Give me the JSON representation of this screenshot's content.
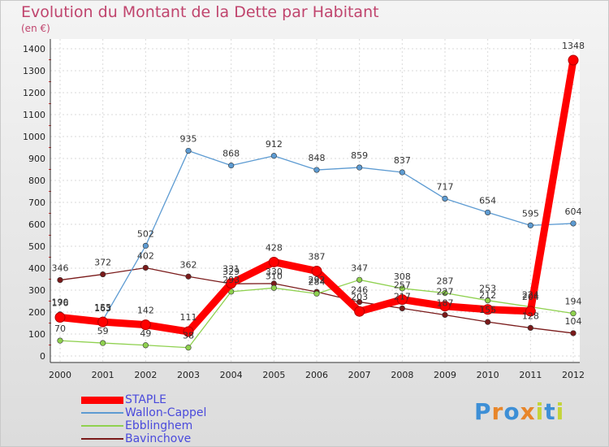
{
  "chart_data": {
    "type": "line",
    "title": "Evolution du Montant de la Dette par Habitant",
    "subtitle": "(en €)",
    "categories": [
      "2000",
      "2001",
      "2002",
      "2003",
      "2004",
      "2005",
      "2006",
      "2007",
      "2008",
      "2009",
      "2010",
      "2011",
      "2012"
    ],
    "ylim": [
      0,
      1400
    ],
    "yticks": [
      0,
      100,
      200,
      300,
      400,
      500,
      600,
      700,
      800,
      900,
      1000,
      1100,
      1200,
      1300,
      1400
    ],
    "grid": true,
    "legend_position": "bottom-left",
    "series": [
      {
        "name": "STAPLE",
        "color": "#ff0000",
        "values": [
          176,
          155,
          142,
          111,
          331,
          428,
          387,
          203,
          257,
          227,
          212,
          204,
          1348
        ]
      },
      {
        "name": "Wallon-Cappel",
        "color": "#5d9bd2",
        "values": [
          190,
          163,
          502,
          935,
          868,
          912,
          848,
          859,
          837,
          717,
          654,
          595,
          604
        ]
      },
      {
        "name": "Ebblinghem",
        "color": "#8fd14f",
        "values": [
          70,
          59,
          49,
          38,
          293,
          310,
          284,
          347,
          308,
          287,
          253,
          224,
          194
        ]
      },
      {
        "name": "Bavinchove",
        "color": "#7a1a1a",
        "values": [
          346,
          372,
          402,
          362,
          329,
          330,
          292,
          246,
          217,
          187,
          155,
          128,
          104
        ]
      }
    ]
  },
  "logo": {
    "letters": [
      "P",
      "r",
      "o",
      "x",
      "i",
      "t",
      "i"
    ],
    "colors": [
      "#3d8fd6",
      "#e8862a",
      "#3d8fd6",
      "#e8862a",
      "#c4d43a",
      "#3d8fd6",
      "#c4d43a"
    ]
  }
}
